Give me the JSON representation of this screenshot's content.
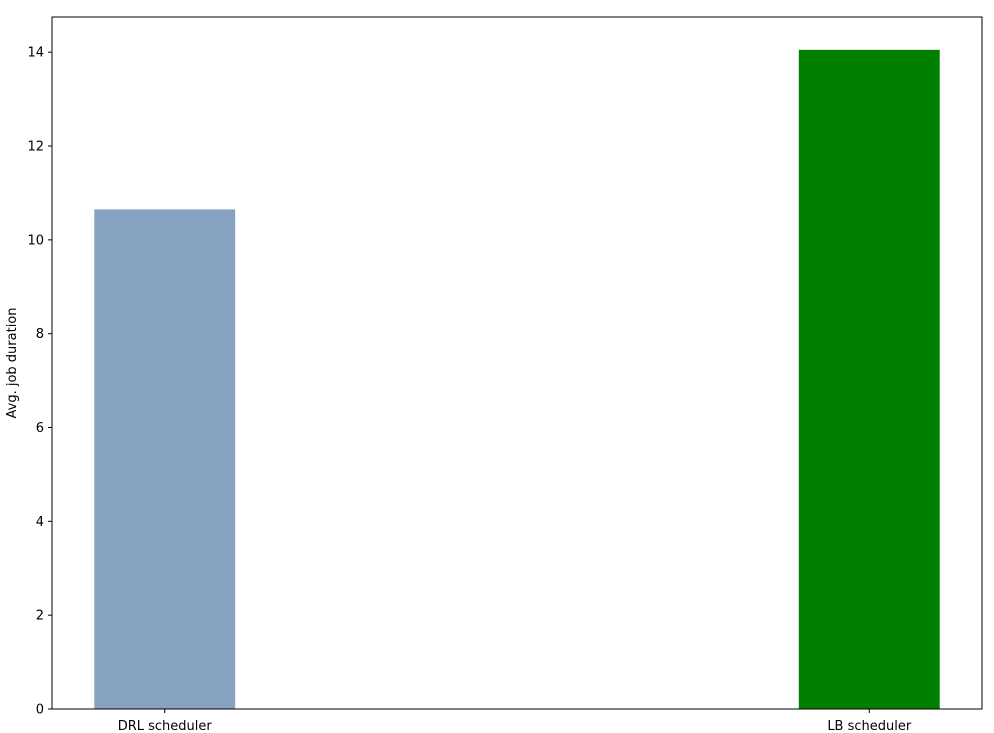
{
  "chart_data": {
    "type": "bar",
    "title": "",
    "xlabel": "",
    "ylabel": "Avg. job duration",
    "categories": [
      "DRL scheduler",
      "LB scheduler"
    ],
    "values": [
      10.65,
      14.05
    ],
    "colors": [
      "#87a3c1",
      "#008000"
    ],
    "ylim": [
      0,
      14.75
    ],
    "yticks": [
      0,
      2,
      4,
      6,
      8,
      10,
      12,
      14
    ],
    "grid": false,
    "legend": "none"
  }
}
